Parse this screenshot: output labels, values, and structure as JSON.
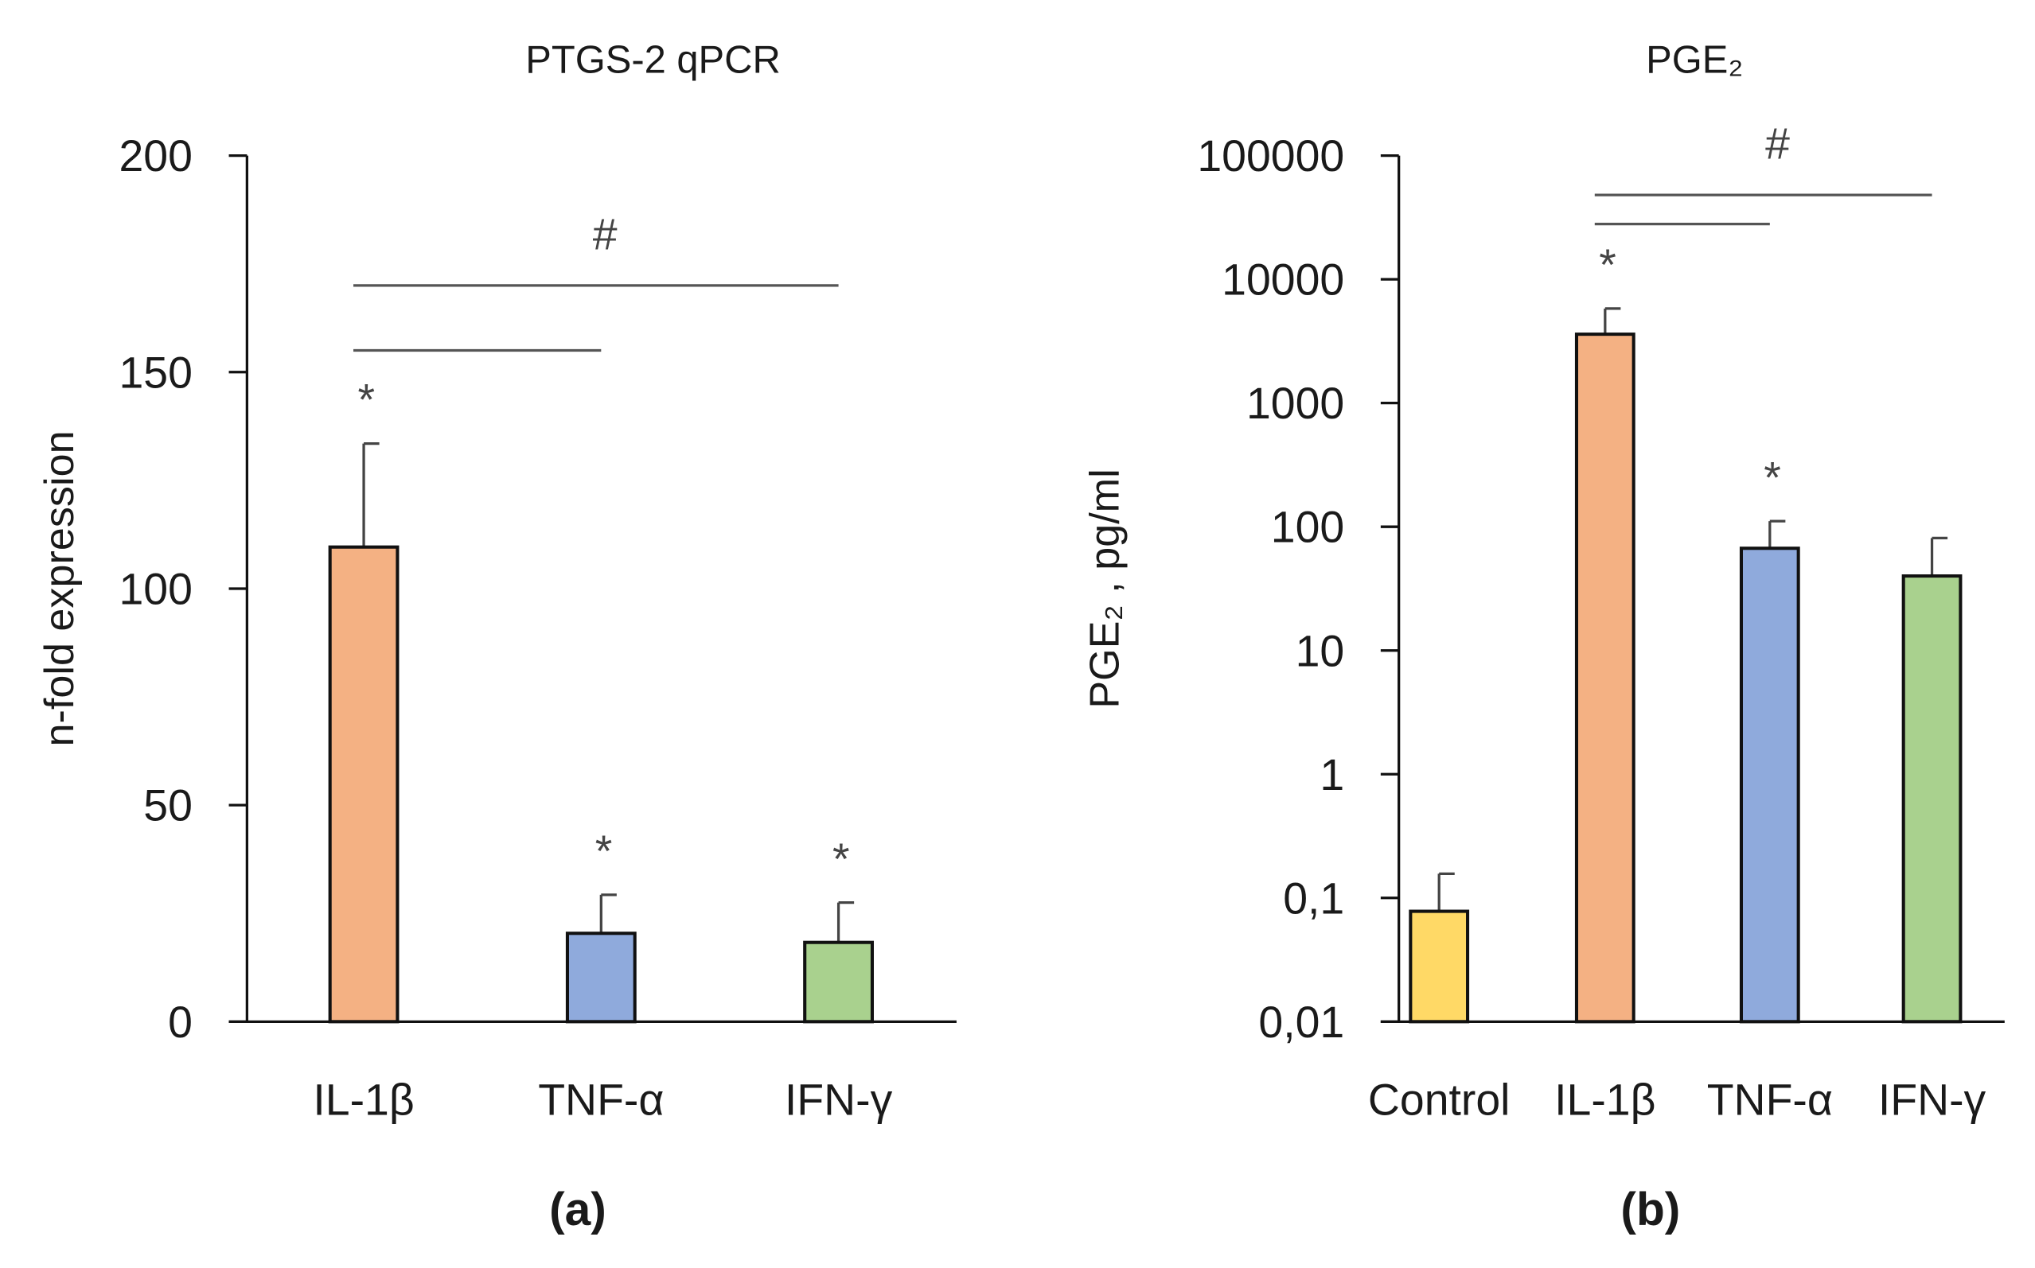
{
  "chart_data": [
    {
      "type": "bar",
      "panel_label": "(a)",
      "title": "PTGS-2 qPCR",
      "ylabel": "n-fold expression",
      "xlabel": "",
      "scale": "linear",
      "ylim": [
        0,
        200
      ],
      "yticks": [
        0,
        50,
        100,
        150,
        200
      ],
      "ytick_labels": [
        "0",
        "50",
        "100",
        "150",
        "200"
      ],
      "categories": [
        "IL-1β",
        "TNF-α",
        "IFN-γ"
      ],
      "values": [
        109.6,
        20.4,
        18.3
      ],
      "error_upper": [
        133.5,
        29.3,
        27.5
      ],
      "colors": [
        "#F4B183",
        "#8FAADC",
        "#A9D18E"
      ],
      "asterisks": [
        "*",
        "*",
        "*"
      ],
      "significance_brackets": [
        {
          "from": "IL-1β",
          "to": "IFN-γ",
          "level": 170
        },
        {
          "from": "IL-1β",
          "to": "TNF-α",
          "level": 155
        }
      ],
      "significance_label": "#",
      "grid": false
    },
    {
      "type": "bar",
      "panel_label": "(b)",
      "title": "PGE₂",
      "ylabel": "PGE₂ , pg/ml",
      "xlabel": "",
      "scale": "log",
      "ylim": [
        0.01,
        100000
      ],
      "yticks": [
        0.01,
        0.1,
        1,
        10,
        100,
        1000,
        10000,
        100000
      ],
      "ytick_labels": [
        "0,01",
        "0,1",
        "1",
        "10",
        "100",
        "1000",
        "10000",
        "100000"
      ],
      "categories": [
        "Control",
        "IL-1β",
        "TNF-α",
        "IFN-γ"
      ],
      "values": [
        0.078,
        3600,
        67,
        40
      ],
      "error_upper": [
        0.157,
        5800,
        111,
        81
      ],
      "colors": [
        "#FFD966",
        "#F4B183",
        "#8FAADC",
        "#A9D18E"
      ],
      "asterisks": [
        "",
        "*",
        "*",
        ""
      ],
      "significance_brackets": [
        {
          "from": "IL-1β",
          "to": "IFN-γ",
          "level": 48000
        },
        {
          "from": "IL-1β",
          "to": "TNF-α",
          "level": 28000
        }
      ],
      "significance_label": "#",
      "grid": false
    }
  ]
}
